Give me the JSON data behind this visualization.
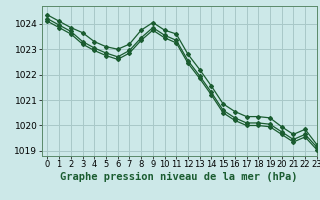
{
  "title": "Graphe pression niveau de la mer (hPa)",
  "background_color": "#cce8e8",
  "grid_color": "#a8c8c8",
  "line_color": "#1a5c30",
  "xlim": [
    -0.5,
    23
  ],
  "ylim": [
    1018.8,
    1024.7
  ],
  "yticks": [
    1019,
    1020,
    1021,
    1022,
    1023,
    1024
  ],
  "xticks": [
    0,
    1,
    2,
    3,
    4,
    5,
    6,
    7,
    8,
    9,
    10,
    11,
    12,
    13,
    14,
    15,
    16,
    17,
    18,
    19,
    20,
    21,
    22,
    23
  ],
  "series1_x": [
    0,
    1,
    2,
    3,
    4,
    5,
    6,
    7,
    8,
    9,
    10,
    11,
    12,
    13,
    14,
    15,
    16,
    17,
    18,
    19,
    20,
    21,
    22,
    23
  ],
  "series1_y": [
    1024.35,
    1024.1,
    1023.85,
    1023.65,
    1023.3,
    1023.1,
    1023.0,
    1023.2,
    1023.75,
    1024.05,
    1023.75,
    1023.6,
    1022.8,
    1022.2,
    1021.55,
    1020.85,
    1020.55,
    1020.35,
    1020.35,
    1020.3,
    1019.95,
    1019.65,
    1019.85,
    1019.25
  ],
  "series2_x": [
    0,
    1,
    2,
    3,
    4,
    5,
    6,
    7,
    8,
    9,
    10,
    11,
    12,
    13,
    14,
    15,
    16,
    17,
    18,
    19,
    20,
    21,
    22,
    23
  ],
  "series2_y": [
    1024.2,
    1023.95,
    1023.7,
    1023.3,
    1023.05,
    1022.85,
    1022.7,
    1022.95,
    1023.45,
    1023.85,
    1023.55,
    1023.35,
    1022.55,
    1021.95,
    1021.3,
    1020.6,
    1020.3,
    1020.1,
    1020.1,
    1020.05,
    1019.75,
    1019.45,
    1019.65,
    1019.15
  ],
  "series3_x": [
    0,
    1,
    2,
    3,
    4,
    5,
    6,
    7,
    8,
    9,
    10,
    11,
    12,
    13,
    14,
    15,
    16,
    17,
    18,
    19,
    20,
    21,
    22,
    23
  ],
  "series3_y": [
    1024.1,
    1023.85,
    1023.6,
    1023.2,
    1022.95,
    1022.75,
    1022.6,
    1022.85,
    1023.35,
    1023.75,
    1023.45,
    1023.25,
    1022.45,
    1021.85,
    1021.2,
    1020.5,
    1020.2,
    1020.0,
    1020.0,
    1019.95,
    1019.65,
    1019.35,
    1019.55,
    1019.05
  ],
  "title_fontsize": 7.5,
  "tick_fontsize": 6.5
}
